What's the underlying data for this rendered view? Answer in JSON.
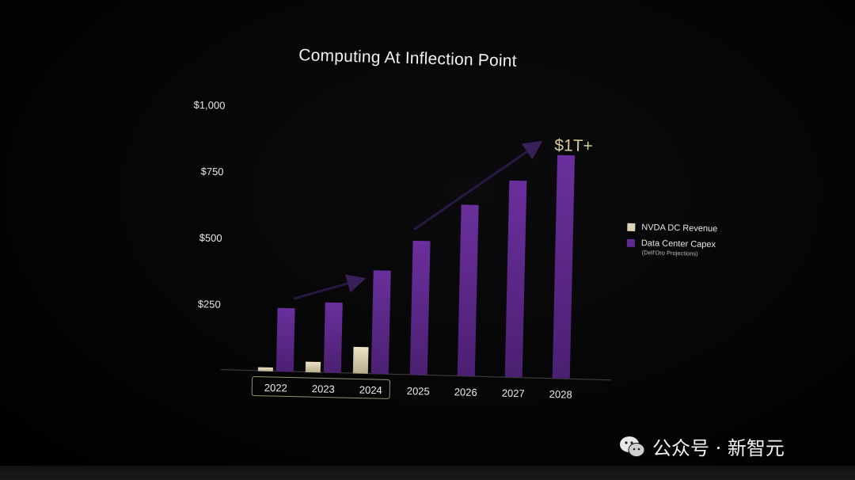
{
  "chart_data": {
    "type": "bar",
    "title": "Computing At Inflection Point",
    "categories": [
      "2022",
      "2023",
      "2024",
      "2025",
      "2026",
      "2027",
      "2028"
    ],
    "highlighted_categories": [
      "2022",
      "2023",
      "2024"
    ],
    "series": [
      {
        "name": "NVDA DC Revenue",
        "color": "#ddd3b4",
        "values": [
          15,
          40,
          100,
          null,
          null,
          null,
          null
        ]
      },
      {
        "name": "Data Center Capex",
        "note": "(Dell'Oro Projections)",
        "color": "#5e2a8c",
        "values": [
          240,
          265,
          390,
          505,
          645,
          740,
          840
        ]
      }
    ],
    "yticks": [
      {
        "value": 250,
        "label": "$250"
      },
      {
        "value": 500,
        "label": "$500"
      },
      {
        "value": 750,
        "label": "$750"
      },
      {
        "value": 1000,
        "label": "$1,000"
      }
    ],
    "ylim": [
      0,
      1000
    ],
    "annotation": "$1T+",
    "legend_position": "right"
  },
  "watermark": {
    "text": "公众号 · 新智元",
    "icon": "wechat-icon"
  }
}
